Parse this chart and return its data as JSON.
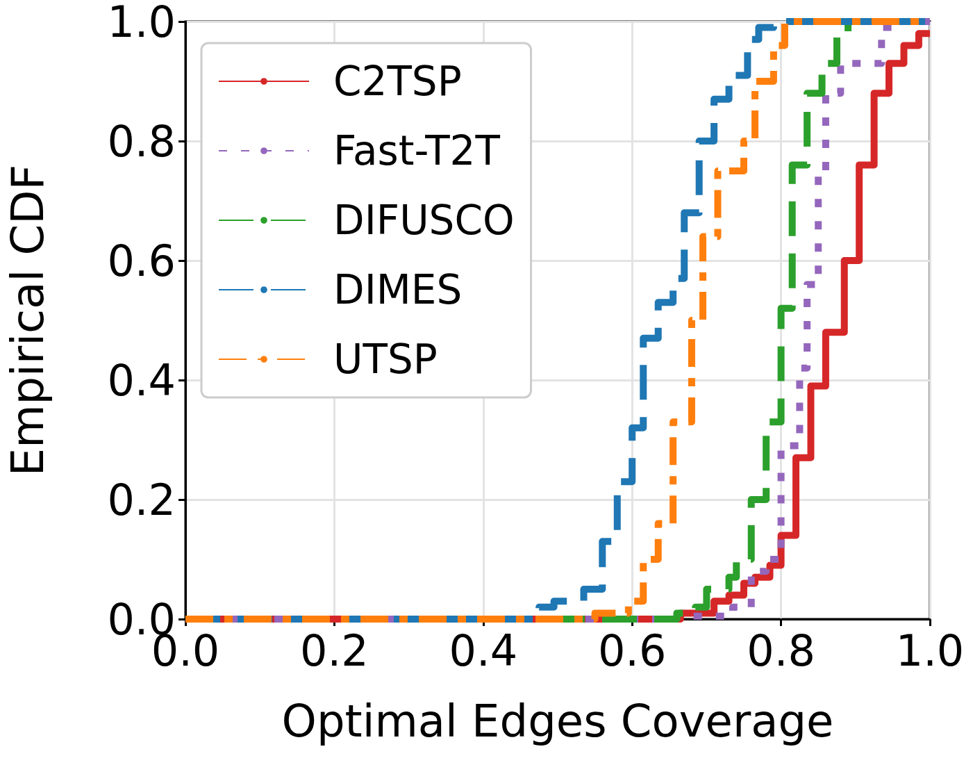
{
  "chart_data": {
    "type": "step",
    "xlabel": "Optimal Edges Coverage",
    "ylabel": "Empirical CDF",
    "xlim": [
      0,
      1
    ],
    "ylim": [
      0,
      1
    ],
    "xticks": [
      {
        "value": 0,
        "label": "0.0"
      },
      {
        "value": 0.2,
        "label": "0.2"
      },
      {
        "value": 0.4,
        "label": "0.4"
      },
      {
        "value": 0.6,
        "label": "0.6"
      },
      {
        "value": 0.8,
        "label": "0.8"
      },
      {
        "value": 1,
        "label": "1.0"
      }
    ],
    "yticks": [
      {
        "value": 0,
        "label": "0.0"
      },
      {
        "value": 0.2,
        "label": "0.2"
      },
      {
        "value": 0.4,
        "label": "0.4"
      },
      {
        "value": 0.6,
        "label": "0.6"
      },
      {
        "value": 0.8,
        "label": "0.8"
      },
      {
        "value": 1,
        "label": "1.0"
      }
    ],
    "grid": true,
    "legend": "top left",
    "series": [
      {
        "name": "C2TSP",
        "color": "#d62728",
        "line_style": "solid",
        "x": [
          0,
          0.665,
          0.71,
          0.73,
          0.75,
          0.765,
          0.785,
          0.8,
          0.82,
          0.84,
          0.86,
          0.885,
          0.905,
          0.925,
          0.945,
          0.965,
          0.985,
          1.0
        ],
        "values": [
          0,
          0.01,
          0.03,
          0.04,
          0.06,
          0.07,
          0.09,
          0.14,
          0.27,
          0.39,
          0.48,
          0.6,
          0.76,
          0.88,
          0.93,
          0.96,
          0.98,
          0.98
        ]
      },
      {
        "name": "Fast-T2T",
        "color": "#9467bd",
        "line_style": "dotted",
        "x": [
          0,
          0.66,
          0.735,
          0.76,
          0.78,
          0.8,
          0.825,
          0.835,
          0.85,
          0.86,
          0.88,
          0.935,
          0.95,
          1.0
        ],
        "values": [
          0,
          0.005,
          0.02,
          0.08,
          0.1,
          0.29,
          0.42,
          0.56,
          0.75,
          0.88,
          0.93,
          0.99,
          1.0,
          1.0
        ]
      },
      {
        "name": "DIFUSCO",
        "color": "#2ca02c",
        "line_style": "dashed",
        "x": [
          0,
          0.66,
          0.685,
          0.7,
          0.73,
          0.74,
          0.76,
          0.78,
          0.8,
          0.815,
          0.835,
          0.855,
          0.875,
          0.89,
          1.0
        ],
        "values": [
          0,
          0.01,
          0.02,
          0.05,
          0.07,
          0.1,
          0.2,
          0.33,
          0.52,
          0.76,
          0.88,
          0.93,
          0.98,
          1.0,
          1.0
        ]
      },
      {
        "name": "DIMES",
        "color": "#1f77b4",
        "line_style": "dashed",
        "x": [
          0,
          0.475,
          0.495,
          0.535,
          0.56,
          0.58,
          0.6,
          0.615,
          0.635,
          0.655,
          0.67,
          0.69,
          0.71,
          0.73,
          0.755,
          0.77,
          0.79,
          1.0
        ],
        "values": [
          0,
          0.02,
          0.03,
          0.05,
          0.13,
          0.23,
          0.32,
          0.47,
          0.53,
          0.57,
          0.68,
          0.8,
          0.87,
          0.91,
          0.97,
          0.99,
          1.0,
          1.0
        ]
      },
      {
        "name": "UTSP",
        "color": "#ff7f0e",
        "line_style": "dashdot",
        "x": [
          0,
          0.55,
          0.595,
          0.615,
          0.635,
          0.655,
          0.68,
          0.695,
          0.715,
          0.75,
          0.765,
          0.79,
          0.805,
          1.0
        ],
        "values": [
          0,
          0.01,
          0.03,
          0.1,
          0.16,
          0.33,
          0.5,
          0.64,
          0.75,
          0.8,
          0.9,
          0.96,
          1.0,
          1.0
        ]
      }
    ]
  }
}
